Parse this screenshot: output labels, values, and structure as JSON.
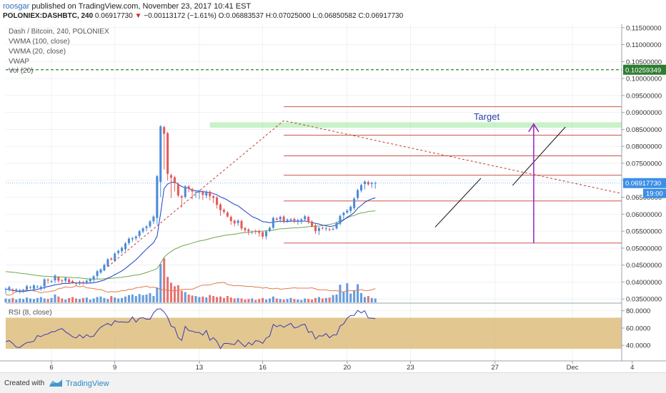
{
  "header": {
    "user": "roosgar",
    "published": "published on TradingView.com, November 23, 2017 10:41 EST",
    "symbol": "POLONIEX:DASHBTC, 240",
    "last": "0.06917730",
    "change": "−0.00113172 (−1.61%)",
    "open": "O:0.06883537",
    "high": "H:0.07025000",
    "low": "L:0.06850582",
    "close": "C:0.06917730"
  },
  "legend": {
    "title": "Dash / Bitcoin, 240, POLONIEX",
    "vwma100": "VWMA (100, close)",
    "vwma20": "VWMA (20, close)",
    "vwap": "VWAP",
    "vol": "Vol (20)",
    "rsi": "RSI (8, close)"
  },
  "labels": {
    "target": "Target",
    "price_tag": "0.06917730",
    "time_tag": "19:00",
    "level_tag": "0.10259349"
  },
  "footer": {
    "created": "Created with",
    "brand": "TradingView"
  },
  "colors": {
    "up": "#4a8bd6",
    "down": "#e35b5b",
    "vwma20": "#1f3fc7",
    "vwma100": "#6aa84f",
    "vwap": "#e07a50",
    "target": "#9b1fc4",
    "fib": "#c0392b",
    "rsi_band": "#dcb976",
    "rsi_line": "#3b3bb0",
    "zone": "#9be89b",
    "level": "#2e7d32"
  },
  "chart_data": {
    "type": "candlestick",
    "price_axis": {
      "ylim": [
        0.034,
        0.116
      ],
      "ticks": [
        "0.11500000",
        "0.11000000",
        "0.10500000",
        "0.10000000",
        "0.09500000",
        "0.09000000",
        "0.08500000",
        "0.08000000",
        "0.07500000",
        "0.07000000",
        "0.06500000",
        "0.06000000",
        "0.05500000",
        "0.05000000",
        "0.04500000",
        "0.04000000",
        "0.03500000"
      ]
    },
    "rsi_axis": {
      "ylim": [
        22,
        88
      ],
      "ticks": [
        "80.0000",
        "60.0000",
        "40.0000"
      ],
      "band": [
        36,
        72
      ]
    },
    "x_axis": {
      "bar_range": [
        0,
        175
      ],
      "ticks": [
        {
          "label": "6",
          "bar": 13
        },
        {
          "label": "9",
          "bar": 31
        },
        {
          "label": "13",
          "bar": 55
        },
        {
          "label": "16",
          "bar": 73
        },
        {
          "label": "20",
          "bar": 97
        },
        {
          "label": "23",
          "bar": 115
        },
        {
          "label": "27",
          "bar": 139
        },
        {
          "label": "Dec",
          "bar": 161
        },
        {
          "label": "4",
          "bar": 178
        }
      ]
    },
    "candles": [
      [
        0.038,
        0.038,
        0.0365
      ],
      [
        0.038,
        0.0385,
        0.0372
      ],
      [
        0.0378,
        0.0375,
        0.0368
      ],
      [
        0.0373,
        0.0378,
        0.0369
      ],
      [
        0.0376,
        0.0376,
        0.0366
      ],
      [
        0.0376,
        0.0376,
        0.0368
      ],
      [
        0.0377,
        0.0388,
        0.0371
      ],
      [
        0.0385,
        0.0385,
        0.0379
      ],
      [
        0.038,
        0.039,
        0.0372
      ],
      [
        0.0387,
        0.0387,
        0.0382
      ],
      [
        0.0382,
        0.0386,
        0.0374
      ],
      [
        0.0387,
        0.0408,
        0.0378
      ],
      [
        0.0407,
        0.0405,
        0.0395
      ],
      [
        0.0402,
        0.0403,
        0.0397
      ],
      [
        0.0405,
        0.0419,
        0.0397
      ],
      [
        0.0414,
        0.0404,
        0.0398
      ],
      [
        0.0405,
        0.0403,
        0.0397
      ],
      [
        0.0404,
        0.0412,
        0.0398
      ],
      [
        0.0408,
        0.0399,
        0.0394
      ],
      [
        0.0403,
        0.0399,
        0.0395
      ],
      [
        0.0397,
        0.0395,
        0.0389
      ],
      [
        0.0397,
        0.0401,
        0.0391
      ],
      [
        0.04,
        0.0397,
        0.0392
      ],
      [
        0.0399,
        0.0404,
        0.0393
      ],
      [
        0.0402,
        0.0409,
        0.0395
      ],
      [
        0.0407,
        0.0417,
        0.04
      ],
      [
        0.0418,
        0.0432,
        0.0409
      ],
      [
        0.0428,
        0.0437,
        0.0424
      ],
      [
        0.0434,
        0.0451,
        0.0432
      ],
      [
        0.0448,
        0.0467,
        0.0444
      ],
      [
        0.0469,
        0.0466,
        0.0464
      ],
      [
        0.0463,
        0.0484,
        0.0459
      ],
      [
        0.0486,
        0.0492,
        0.048
      ],
      [
        0.0491,
        0.0501,
        0.0484
      ],
      [
        0.0497,
        0.0514,
        0.049
      ],
      [
        0.0515,
        0.0528,
        0.0509
      ],
      [
        0.0526,
        0.0529,
        0.0518
      ],
      [
        0.0529,
        0.0534,
        0.0522
      ],
      [
        0.0536,
        0.055,
        0.0529
      ],
      [
        0.0549,
        0.0558,
        0.0544
      ],
      [
        0.0559,
        0.0564,
        0.055
      ],
      [
        0.0564,
        0.0579,
        0.0559
      ],
      [
        0.0579,
        0.0593,
        0.0571
      ],
      [
        0.0589,
        0.0712,
        0.057
      ],
      [
        0.0695,
        0.0859,
        0.065
      ],
      [
        0.0857,
        0.0837,
        0.0732
      ],
      [
        0.0839,
        0.0719,
        0.0699
      ],
      [
        0.0715,
        0.0708,
        0.0648
      ],
      [
        0.0709,
        0.0692,
        0.0667
      ],
      [
        0.0689,
        0.0655,
        0.065
      ],
      [
        0.0653,
        0.0649,
        0.0619
      ],
      [
        0.0651,
        0.0682,
        0.0646
      ],
      [
        0.0682,
        0.0676,
        0.0665
      ],
      [
        0.0674,
        0.0667,
        0.0644
      ],
      [
        0.0665,
        0.0665,
        0.0648
      ],
      [
        0.0664,
        0.0668,
        0.0644
      ],
      [
        0.0667,
        0.0657,
        0.0642
      ],
      [
        0.0655,
        0.0667,
        0.0647
      ],
      [
        0.0666,
        0.0653,
        0.0641
      ],
      [
        0.0653,
        0.0648,
        0.0633
      ],
      [
        0.0649,
        0.0628,
        0.0617
      ],
      [
        0.0629,
        0.0612,
        0.0595
      ],
      [
        0.0613,
        0.0607,
        0.0601
      ],
      [
        0.0605,
        0.0593,
        0.059
      ],
      [
        0.0592,
        0.058,
        0.0569
      ],
      [
        0.0581,
        0.0573,
        0.0564
      ],
      [
        0.0574,
        0.0581,
        0.0566
      ],
      [
        0.058,
        0.0558,
        0.0552
      ],
      [
        0.0559,
        0.0553,
        0.0546
      ],
      [
        0.0555,
        0.0549,
        0.0538
      ],
      [
        0.0549,
        0.0549,
        0.0541
      ],
      [
        0.0551,
        0.0549,
        0.0541
      ],
      [
        0.055,
        0.0545,
        0.0534
      ],
      [
        0.0547,
        0.0534,
        0.0527
      ],
      [
        0.0535,
        0.0549,
        0.0526
      ],
      [
        0.0551,
        0.056,
        0.0547
      ],
      [
        0.056,
        0.0589,
        0.0556
      ],
      [
        0.0587,
        0.0584,
        0.0581
      ],
      [
        0.0585,
        0.0592,
        0.0575
      ],
      [
        0.0593,
        0.0578,
        0.0573
      ],
      [
        0.058,
        0.0584,
        0.0575
      ],
      [
        0.0582,
        0.0585,
        0.0576
      ],
      [
        0.0586,
        0.0578,
        0.0574
      ],
      [
        0.0578,
        0.0583,
        0.0569
      ],
      [
        0.0581,
        0.0585,
        0.0571
      ],
      [
        0.0585,
        0.0594,
        0.058
      ],
      [
        0.0592,
        0.0577,
        0.0571
      ],
      [
        0.0578,
        0.0565,
        0.0561
      ],
      [
        0.0567,
        0.055,
        0.0542
      ],
      [
        0.0551,
        0.0559,
        0.0539
      ],
      [
        0.056,
        0.0559,
        0.0555
      ],
      [
        0.0558,
        0.0559,
        0.0551
      ],
      [
        0.0556,
        0.0555,
        0.055
      ],
      [
        0.0556,
        0.0557,
        0.0552
      ],
      [
        0.0558,
        0.0574,
        0.0555
      ],
      [
        0.0572,
        0.0595,
        0.0567
      ],
      [
        0.0597,
        0.0604,
        0.0585
      ],
      [
        0.0605,
        0.0611,
        0.0601
      ],
      [
        0.061,
        0.0622,
        0.0603
      ],
      [
        0.0618,
        0.0646,
        0.0613
      ],
      [
        0.0648,
        0.0671,
        0.0642
      ],
      [
        0.067,
        0.0686,
        0.0664
      ],
      [
        0.0689,
        0.0696,
        0.0673
      ],
      [
        0.0695,
        0.0688,
        0.0684
      ],
      [
        0.0689,
        0.0692,
        0.0677
      ],
      [
        0.0692,
        0.0692,
        0.0675
      ]
    ],
    "volumes": [
      0.8,
      0.7,
      0.9,
      0.6,
      0.8,
      0.7,
      1.0,
      0.8,
      0.7,
      0.9,
      1.1,
      0.8,
      0.7,
      0.9,
      1.6,
      1.2,
      0.8,
      0.6,
      0.9,
      1.1,
      0.8,
      0.7,
      0.9,
      1.0,
      0.6,
      0.8,
      1.1,
      1.2,
      0.9,
      0.7,
      1.3,
      1.0,
      0.8,
      0.9,
      1.2,
      1.5,
      1.6,
      1.3,
      1.7,
      1.5,
      1.6,
      1.9,
      1.3,
      3.0,
      7.8,
      9.0,
      5.2,
      4.0,
      3.3,
      3.5,
      2.4,
      2.1,
      1.6,
      1.4,
      1.3,
      1.1,
      1.2,
      1.0,
      1.5,
      1.3,
      1.1,
      1.2,
      0.9,
      1.3,
      1.0,
      0.8,
      0.9,
      0.8,
      0.6,
      0.7,
      0.8,
      0.5,
      0.7,
      0.9,
      0.6,
      0.8,
      1.2,
      0.8,
      0.7,
      0.6,
      0.7,
      0.9,
      0.7,
      0.6,
      0.5,
      0.8,
      0.7,
      0.6,
      0.9,
      1.1,
      0.8,
      0.9,
      1.0,
      1.5,
      1.6,
      3.6,
      2.1,
      3.9,
      1.8,
      2.4,
      3.7,
      1.9,
      1.1,
      1.3,
      0.9,
      0.8
    ],
    "vwma20": [
      0.0379,
      0.0378,
      0.0375,
      0.0374,
      0.0372,
      0.0372,
      0.0374,
      0.0375,
      0.0377,
      0.0379,
      0.0381,
      0.0384,
      0.0387,
      0.0389,
      0.0392,
      0.0393,
      0.0395,
      0.0396,
      0.0396,
      0.0398,
      0.0397,
      0.0397,
      0.0397,
      0.0397,
      0.0397,
      0.0398,
      0.04,
      0.0403,
      0.0406,
      0.0412,
      0.0416,
      0.0422,
      0.0427,
      0.0433,
      0.044,
      0.0449,
      0.0457,
      0.0466,
      0.0476,
      0.0487,
      0.0497,
      0.0507,
      0.0516,
      0.0535,
      0.0602,
      0.0676,
      0.0689,
      0.0694,
      0.0695,
      0.0689,
      0.0681,
      0.0679,
      0.0676,
      0.0671,
      0.0669,
      0.0668,
      0.0667,
      0.0665,
      0.0664,
      0.0661,
      0.0657,
      0.0651,
      0.0647,
      0.0642,
      0.0635,
      0.0629,
      0.0625,
      0.0617,
      0.0609,
      0.0601,
      0.0593,
      0.0589,
      0.0584,
      0.0578,
      0.0577,
      0.0575,
      0.0577,
      0.0578,
      0.058,
      0.0578,
      0.0578,
      0.058,
      0.0579,
      0.0579,
      0.0579,
      0.058,
      0.0578,
      0.0576,
      0.0573,
      0.0571,
      0.0568,
      0.0566,
      0.0564,
      0.0565,
      0.0569,
      0.0576,
      0.0583,
      0.0591,
      0.0597,
      0.0605,
      0.0618,
      0.0626,
      0.0635,
      0.0641,
      0.0645,
      0.0648
    ],
    "vwma100": [
      0.0431,
      0.043,
      0.0429,
      0.0428,
      0.0426,
      0.0425,
      0.0424,
      0.0422,
      0.0421,
      0.0419,
      0.0418,
      0.0417,
      0.0417,
      0.0416,
      0.0415,
      0.0415,
      0.0415,
      0.0414,
      0.0414,
      0.0413,
      0.0413,
      0.0412,
      0.0411,
      0.041,
      0.0409,
      0.0409,
      0.0409,
      0.0409,
      0.041,
      0.041,
      0.0411,
      0.0412,
      0.0413,
      0.0414,
      0.0416,
      0.0417,
      0.0419,
      0.0421,
      0.0422,
      0.0425,
      0.0428,
      0.0432,
      0.0435,
      0.044,
      0.0455,
      0.0473,
      0.0483,
      0.049,
      0.0497,
      0.0501,
      0.0506,
      0.0509,
      0.0512,
      0.0515,
      0.0518,
      0.0521,
      0.0523,
      0.0525,
      0.0528,
      0.0531,
      0.0533,
      0.0535,
      0.0537,
      0.0539,
      0.054,
      0.0541,
      0.0543,
      0.0545,
      0.0546,
      0.0546,
      0.0548,
      0.0549,
      0.055,
      0.055,
      0.0551,
      0.0552,
      0.0553,
      0.0555,
      0.0557,
      0.0557,
      0.0558,
      0.0559,
      0.056,
      0.056,
      0.0561,
      0.0562,
      0.0563,
      0.0564,
      0.0565,
      0.0565,
      0.0567,
      0.0568,
      0.057,
      0.0572,
      0.0575,
      0.0581,
      0.0584,
      0.0589,
      0.0594,
      0.0596,
      0.0601,
      0.0604,
      0.0605,
      0.0608,
      0.0609,
      0.061
    ],
    "vwap": [
      0.0363,
      0.0361,
      0.0365,
      0.0372,
      0.0373,
      0.0377,
      0.0374,
      0.0376,
      0.0375,
      0.0372,
      0.0368,
      0.0371,
      0.0371,
      0.0373,
      0.0375,
      0.0381,
      0.0382,
      0.0386,
      0.0384,
      0.0385,
      0.0389,
      0.0386,
      0.0388,
      0.0383,
      0.0382,
      0.0381,
      0.0378,
      0.0378,
      0.0374,
      0.037,
      0.0372,
      0.0371,
      0.0372,
      0.0375,
      0.0375,
      0.0379,
      0.0379,
      0.0383,
      0.0384,
      0.0386,
      0.0388,
      0.0384,
      0.0385,
      0.0383,
      0.0378,
      0.0377,
      0.0376,
      0.0374,
      0.0375,
      0.0375,
      0.0378,
      0.0379,
      0.0379,
      0.0379,
      0.0383,
      0.0388,
      0.0391,
      0.0391,
      0.0392,
      0.0395,
      0.0397,
      0.0398,
      0.0399,
      0.0393,
      0.0391,
      0.0389,
      0.039,
      0.0389,
      0.0388,
      0.0387,
      0.0387,
      0.0385,
      0.0385,
      0.0382,
      0.0384,
      0.0381,
      0.038,
      0.0382,
      0.0379,
      0.038,
      0.0381,
      0.0382,
      0.0383,
      0.0382,
      0.0382,
      0.0382,
      0.0382,
      0.0383,
      0.038,
      0.0377,
      0.0377,
      0.0377,
      0.0375,
      0.0374,
      0.0375,
      0.0372,
      0.0371,
      0.0375,
      0.0374,
      0.0375,
      0.0376,
      0.0378,
      0.0375,
      0.0375,
      0.0377,
      0.0381
    ],
    "rsi": [
      44.3,
      45.4,
      42.2,
      37.8,
      37.5,
      40.7,
      43.3,
      43.7,
      44.7,
      51.2,
      50.1,
      52.3,
      53.3,
      55.6,
      55.9,
      58.2,
      59.4,
      55.6,
      53.0,
      49.8,
      48.6,
      52.3,
      48.5,
      52.4,
      49.7,
      50.6,
      56.5,
      60.9,
      63.3,
      65.4,
      63.0,
      68.5,
      66.9,
      67.1,
      66.6,
      67.0,
      72.9,
      66.8,
      71.4,
      71.9,
      70.3,
      70.3,
      77.5,
      81.8,
      82.2,
      78.6,
      72.4,
      62.2,
      60.7,
      48.8,
      45.8,
      61.9,
      57.1,
      56.5,
      54.9,
      54.9,
      51.9,
      57.2,
      46.0,
      48.9,
      44.7,
      36.3,
      42.2,
      42.2,
      41.6,
      40.9,
      46.1,
      42.0,
      38.3,
      43.3,
      40.5,
      45.4,
      44.8,
      42.3,
      48.3,
      50.6,
      64.2,
      61.5,
      63.4,
      60.9,
      63.3,
      65.5,
      60.0,
      61.0,
      63.6,
      64.4,
      55.0,
      56.0,
      47.3,
      51.2,
      50.7,
      53.6,
      48.8,
      52.0,
      52.1,
      62.3,
      64.8,
      71.4,
      74.5,
      74.6,
      80.4,
      77.6,
      80.0,
      71.7,
      71.4,
      71.0
    ],
    "drawings": {
      "fib_levels": [
        0.0515,
        0.0639,
        0.0715,
        0.0772,
        0.0833,
        0.0917
      ],
      "fib_bar_range": [
        79,
        175
      ],
      "supply_zone": [
        0.0855,
        0.0871
      ],
      "zone_bar_range": [
        58,
        175
      ],
      "level_line": 0.10259349,
      "target_arrow": {
        "bar": 150,
        "from": 0.0515,
        "to": 0.0866
      },
      "trend_dashed": [
        [
          29,
          0.0445
        ],
        [
          79,
          0.0876
        ],
        [
          175,
          0.0661
        ]
      ],
      "channel_lines": [
        [
          [
            122,
            0.0562
          ],
          [
            135,
            0.0706
          ]
        ],
        [
          [
            144,
            0.0685
          ],
          [
            159,
            0.0857
          ]
        ]
      ]
    }
  }
}
